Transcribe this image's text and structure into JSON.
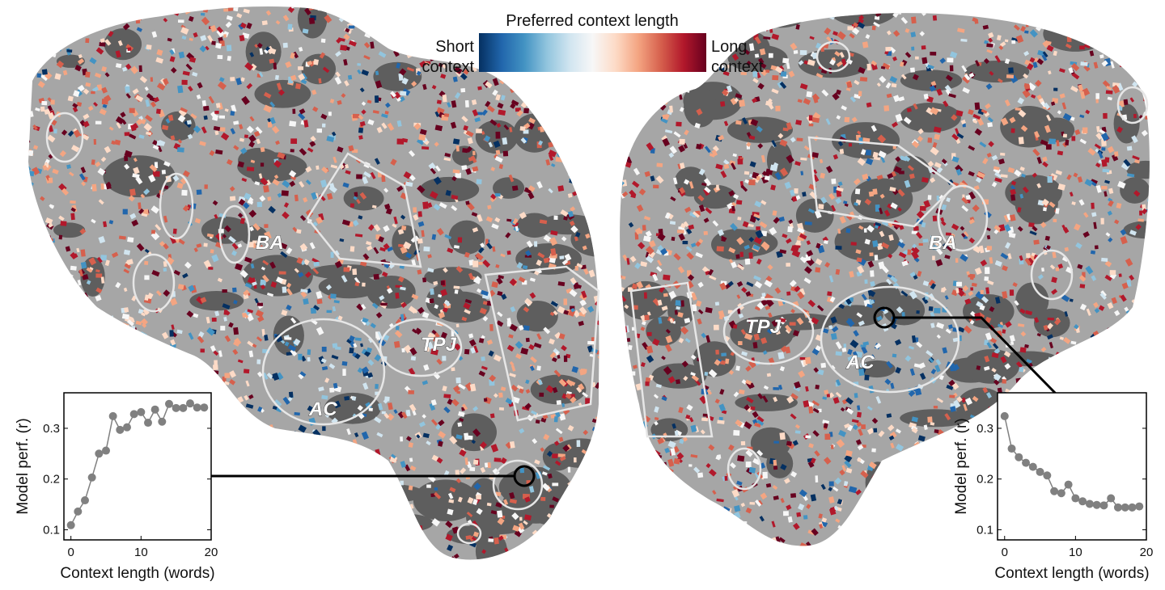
{
  "colorbar": {
    "title": "Preferred context length",
    "low_label_line1": "Short",
    "low_label_line2": "context",
    "high_label_line1": "Long",
    "high_label_line2": "context",
    "colormap": [
      "#053061",
      "#2166ac",
      "#4393c3",
      "#92c5de",
      "#d1e5f0",
      "#f7f7f7",
      "#fddbc7",
      "#f4a582",
      "#d6604d",
      "#b2182b",
      "#67001f"
    ]
  },
  "left_hemisphere": {
    "labels": {
      "ba": "BA",
      "tpj": "TPJ",
      "ac": "AC"
    }
  },
  "right_hemisphere": {
    "labels": {
      "ba": "BA",
      "tpj": "TPJ",
      "ac": "AC"
    }
  },
  "colors": {
    "cortex_light": "#a6a6a6",
    "cortex_dark": "#5e5e5e",
    "roi_outline": "#e6e6e6",
    "marker": "#808080"
  },
  "chart_data": [
    {
      "type": "line",
      "xlabel": "Context length (words)",
      "ylabel": "Model perf. (r)",
      "xlim": [
        -1,
        20
      ],
      "ylim": [
        0.08,
        0.37
      ],
      "xticks": [
        0,
        10,
        20
      ],
      "yticks": [
        0.1,
        0.2,
        0.3
      ],
      "x": [
        0,
        1,
        2,
        3,
        4,
        5,
        6,
        7,
        8,
        9,
        10,
        11,
        12,
        13,
        14,
        15,
        16,
        17,
        18,
        19
      ],
      "values": [
        0.109,
        0.136,
        0.158,
        0.203,
        0.25,
        0.256,
        0.324,
        0.297,
        0.302,
        0.328,
        0.332,
        0.311,
        0.337,
        0.313,
        0.348,
        0.34,
        0.34,
        0.349,
        0.341,
        0.341
      ]
    },
    {
      "type": "line",
      "xlabel": "Context length (words)",
      "ylabel": "Model perf. (r)",
      "xlim": [
        -1,
        20
      ],
      "ylim": [
        0.08,
        0.37
      ],
      "xticks": [
        0,
        10,
        20
      ],
      "yticks": [
        0.1,
        0.2,
        0.3
      ],
      "x": [
        0,
        1,
        2,
        3,
        4,
        5,
        6,
        7,
        8,
        9,
        10,
        11,
        12,
        13,
        14,
        15,
        16,
        17,
        18,
        19
      ],
      "values": [
        0.324,
        0.26,
        0.243,
        0.232,
        0.224,
        0.214,
        0.207,
        0.176,
        0.172,
        0.189,
        0.162,
        0.156,
        0.151,
        0.149,
        0.148,
        0.162,
        0.144,
        0.144,
        0.144,
        0.146
      ]
    }
  ]
}
